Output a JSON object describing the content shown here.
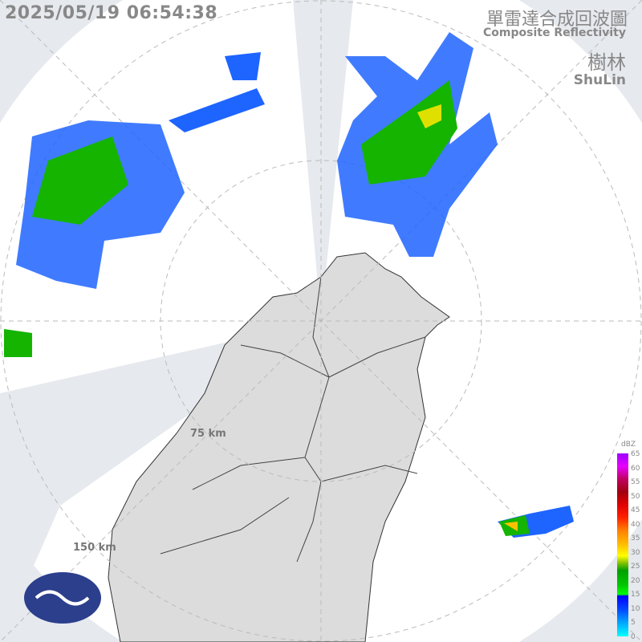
{
  "timestamp": "2025/05/19 06:54:38",
  "title_zh": "單雷達合成回波圖",
  "title_en": "Composite Reflectivity",
  "station_zh": "樹林",
  "station_en": "ShuLin",
  "range_labels": [
    "75 km",
    "150 km"
  ],
  "legend": {
    "unit": "dBZ",
    "ticks": [
      "65",
      "60",
      "55",
      "50",
      "45",
      "40",
      "35",
      "30",
      "25",
      "20",
      "15",
      "10",
      "5",
      "0"
    ]
  },
  "colors": {
    "background": "#e6e9ee",
    "coverage": "#ffffff",
    "land": "#dcdcdc",
    "logo": "#2b3f8c"
  }
}
